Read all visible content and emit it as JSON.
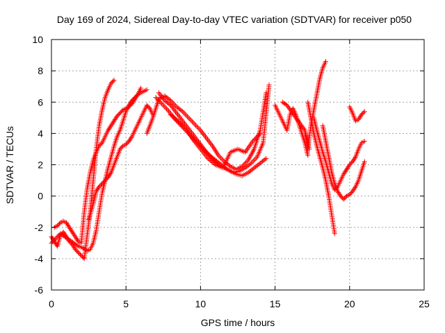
{
  "chart_data": {
    "type": "scatter",
    "title": "Day 169 of 2024, Sidereal Day-to-day VTEC variation (SDTVAR) for receiver p050",
    "xlabel": "GPS time / hours",
    "ylabel": "SDTVAR / TECUs",
    "xlim": [
      0,
      25
    ],
    "ylim": [
      -6,
      10
    ],
    "xticks": [
      "0",
      "5",
      "10",
      "15",
      "20",
      "25"
    ],
    "yticks": [
      "-6",
      "-4",
      "-2",
      "0",
      "2",
      "4",
      "6",
      "8",
      "10"
    ],
    "grid": true,
    "marker": "+",
    "color": "#ff0000",
    "series": [
      {
        "x": [
          0.0,
          0.2,
          0.4,
          0.6,
          0.8,
          1.0,
          1.2,
          1.4,
          1.6,
          1.8,
          2.0,
          2.2,
          2.4,
          2.6,
          2.8,
          3.0,
          3.2,
          3.4,
          3.6,
          3.8,
          4.0,
          4.2
        ],
        "y": [
          -2.6,
          -2.9,
          -3.2,
          -2.5,
          -2.3,
          -2.6,
          -2.9,
          -3.1,
          -3.4,
          -3.6,
          -3.8,
          -4.0,
          -2.5,
          -1.0,
          1.0,
          3.0,
          4.5,
          5.5,
          6.3,
          6.8,
          7.2,
          7.4
        ]
      },
      {
        "x": [
          0.2,
          0.4,
          0.6,
          0.8,
          1.0,
          1.2,
          1.4,
          1.6,
          1.8,
          2.0,
          2.2,
          2.4,
          2.6,
          2.8,
          3.0,
          3.2,
          3.4,
          3.6,
          3.8,
          4.0,
          4.2,
          4.4,
          4.6,
          4.8,
          5.0,
          5.2,
          5.4,
          5.6,
          5.8,
          6.0
        ],
        "y": [
          -2.0,
          -1.9,
          -1.7,
          -1.6,
          -1.7,
          -2.0,
          -2.3,
          -2.6,
          -2.9,
          -3.0,
          -1.0,
          0.5,
          1.5,
          2.3,
          2.8,
          3.2,
          3.4,
          3.8,
          4.2,
          4.5,
          4.8,
          5.1,
          5.3,
          5.5,
          5.6,
          5.7,
          5.9,
          6.2,
          6.5,
          6.9
        ]
      },
      {
        "x": [
          0.0,
          0.3,
          0.6,
          0.9,
          1.2,
          1.5,
          1.8,
          2.1,
          2.4,
          2.6,
          2.8,
          3.0,
          3.2,
          3.4,
          3.6,
          3.8,
          4.0,
          4.2,
          4.4,
          4.6,
          4.8,
          5.0,
          5.2,
          5.4,
          5.6,
          5.8,
          6.0,
          6.2,
          6.4
        ],
        "y": [
          -3.0,
          -2.7,
          -2.4,
          -2.6,
          -2.8,
          -3.0,
          -3.2,
          -3.3,
          -3.5,
          -3.4,
          -3.0,
          -2.2,
          -1.0,
          0.2,
          1.0,
          1.8,
          2.5,
          3.2,
          3.8,
          4.2,
          4.8,
          5.4,
          5.8,
          6.1,
          6.3,
          6.5,
          6.6,
          6.7,
          6.8
        ]
      },
      {
        "x": [
          2.5,
          2.8,
          3.0,
          3.2,
          3.4,
          3.6,
          3.8,
          4.0,
          4.2,
          4.4,
          4.6,
          4.8,
          5.0,
          5.2,
          5.4,
          5.6,
          5.8,
          6.0,
          6.2,
          6.4,
          6.6,
          6.8
        ],
        "y": [
          -1.5,
          -0.5,
          0.3,
          0.6,
          0.8,
          1.0,
          1.2,
          1.5,
          2.0,
          2.5,
          3.0,
          3.2,
          3.3,
          3.5,
          3.8,
          4.2,
          4.6,
          5.0,
          5.4,
          5.8,
          5.6,
          5.2
        ]
      },
      {
        "x": [
          6.4,
          6.8,
          7.2,
          7.6,
          8.0,
          8.4,
          8.8,
          9.2,
          9.6,
          10.0,
          10.4,
          10.8,
          11.2,
          11.6,
          12.0,
          12.4,
          12.8,
          13.2,
          13.6,
          14.0,
          14.4
        ],
        "y": [
          4.0,
          5.0,
          6.2,
          6.4,
          6.1,
          5.7,
          5.4,
          5.0,
          4.6,
          4.2,
          3.7,
          3.2,
          2.6,
          2.2,
          1.9,
          1.7,
          1.9,
          2.3,
          3.0,
          4.2,
          6.6
        ]
      },
      {
        "x": [
          7.0,
          7.4,
          7.8,
          8.2,
          8.6,
          9.0,
          9.4,
          9.8,
          10.2,
          10.6,
          11.0,
          11.4,
          11.8,
          12.2,
          12.6,
          13.0,
          13.4,
          13.8,
          14.2,
          14.6
        ],
        "y": [
          6.3,
          5.9,
          5.5,
          5.0,
          4.6,
          4.2,
          3.8,
          3.4,
          3.0,
          2.6,
          2.3,
          2.0,
          1.7,
          1.5,
          1.6,
          1.8,
          2.1,
          2.5,
          3.4,
          7.1
        ]
      },
      {
        "x": [
          7.2,
          7.6,
          8.0,
          8.4,
          8.8,
          9.2,
          9.6,
          10.0,
          10.4,
          10.8,
          11.2,
          11.6,
          12.0,
          12.4,
          12.8,
          13.2,
          13.6,
          14.0,
          14.4
        ],
        "y": [
          6.6,
          6.1,
          5.8,
          5.3,
          4.8,
          4.3,
          3.8,
          3.3,
          2.8,
          2.4,
          2.0,
          1.8,
          1.6,
          1.4,
          1.3,
          1.5,
          1.8,
          2.1,
          2.4
        ]
      },
      {
        "x": [
          8.0,
          8.5,
          9.0,
          9.5,
          10.0,
          10.5,
          11.0,
          11.5,
          12.0,
          12.5,
          13.0,
          13.5,
          14.0
        ],
        "y": [
          5.2,
          4.8,
          4.3,
          3.6,
          3.0,
          2.4,
          2.0,
          1.8,
          2.8,
          3.0,
          2.8,
          3.5,
          4.0
        ]
      },
      {
        "x": [
          15.0,
          15.2,
          15.4,
          15.6,
          15.8,
          16.0,
          16.2,
          16.4,
          16.6,
          16.8,
          17.0,
          17.2
        ],
        "y": [
          5.8,
          5.4,
          5.0,
          4.6,
          4.2,
          5.2,
          5.6,
          5.2,
          4.6,
          4.0,
          3.4,
          2.6
        ]
      },
      {
        "x": [
          15.5,
          15.8,
          16.1,
          16.4,
          16.7,
          17.0,
          17.3
        ],
        "y": [
          6.0,
          5.8,
          5.4,
          5.0,
          4.6,
          4.2,
          3.0
        ]
      },
      {
        "x": [
          17.0,
          17.2,
          17.4,
          17.6,
          17.8,
          18.0,
          18.2,
          18.4
        ],
        "y": [
          4.0,
          3.0,
          4.5,
          5.5,
          6.5,
          7.5,
          8.2,
          8.6
        ]
      },
      {
        "x": [
          17.2,
          17.4,
          17.6,
          17.8,
          18.0,
          18.2,
          18.4,
          18.6,
          18.8,
          19.0
        ],
        "y": [
          6.0,
          5.0,
          4.0,
          3.2,
          2.5,
          1.8,
          1.0,
          0.0,
          -1.2,
          -2.4
        ]
      },
      {
        "x": [
          17.6,
          17.8,
          18.0,
          18.2,
          18.4,
          18.6,
          18.8,
          19.0,
          19.2,
          19.4,
          19.6,
          19.8,
          20.0,
          20.2,
          20.4,
          20.6,
          20.8,
          21.0
        ],
        "y": [
          5.0,
          4.2,
          3.5,
          2.8,
          2.2,
          1.5,
          0.8,
          0.4,
          0.6,
          1.0,
          1.4,
          1.7,
          2.0,
          2.2,
          2.5,
          3.0,
          3.4,
          3.5
        ]
      },
      {
        "x": [
          18.2,
          18.4,
          18.6,
          18.8,
          19.0,
          19.2,
          19.4,
          19.6,
          19.8,
          20.0,
          20.2,
          20.4,
          20.6,
          20.8,
          21.0
        ],
        "y": [
          4.5,
          3.5,
          2.5,
          1.5,
          0.8,
          0.3,
          0.0,
          -0.2,
          0.0,
          0.1,
          0.3,
          0.6,
          1.0,
          1.6,
          2.2
        ]
      },
      {
        "x": [
          20.0,
          20.2,
          20.4,
          20.6,
          20.8,
          21.0
        ],
        "y": [
          5.7,
          5.3,
          4.8,
          4.9,
          5.2,
          5.4
        ]
      }
    ]
  }
}
